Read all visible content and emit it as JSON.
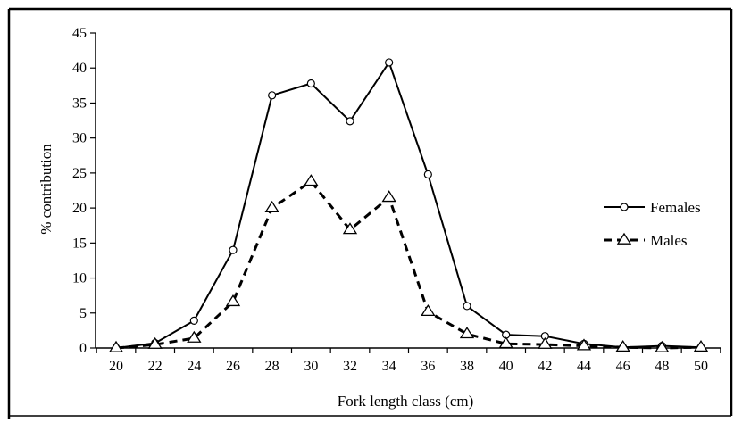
{
  "chart_data": {
    "type": "line",
    "xlabel": "Fork length class (cm)",
    "ylabel": "% contribution",
    "x": [
      20,
      22,
      24,
      26,
      28,
      30,
      32,
      34,
      36,
      38,
      40,
      42,
      44,
      46,
      48,
      50
    ],
    "xticks": [
      "20",
      "22",
      "24",
      "26",
      "28",
      "30",
      "32",
      "34",
      "36",
      "38",
      "40",
      "42",
      "44",
      "46",
      "48",
      "50"
    ],
    "ylim": [
      0,
      45
    ],
    "yticks": [
      "0",
      "5",
      "10",
      "15",
      "20",
      "25",
      "30",
      "35",
      "40",
      "45"
    ],
    "grid": false,
    "legend_position": "right",
    "series": [
      {
        "name": "Females",
        "style": "solid",
        "marker": "circle",
        "values": [
          0,
          0.7,
          3.9,
          14,
          36.1,
          37.8,
          32.4,
          40.8,
          24.8,
          6.0,
          1.9,
          1.7,
          0.6,
          0.1,
          0.3,
          0.1
        ]
      },
      {
        "name": "Males",
        "style": "dashed",
        "marker": "triangle",
        "values": [
          0,
          0.5,
          1.4,
          6.6,
          20.0,
          23.8,
          16.9,
          21.5,
          5.2,
          2.0,
          0.6,
          0.5,
          0.3,
          0.1,
          0.0,
          0.1
        ]
      }
    ],
    "colors": {
      "line": "#000000",
      "marker_fill": "#ffffff",
      "background": "#ffffff"
    }
  }
}
